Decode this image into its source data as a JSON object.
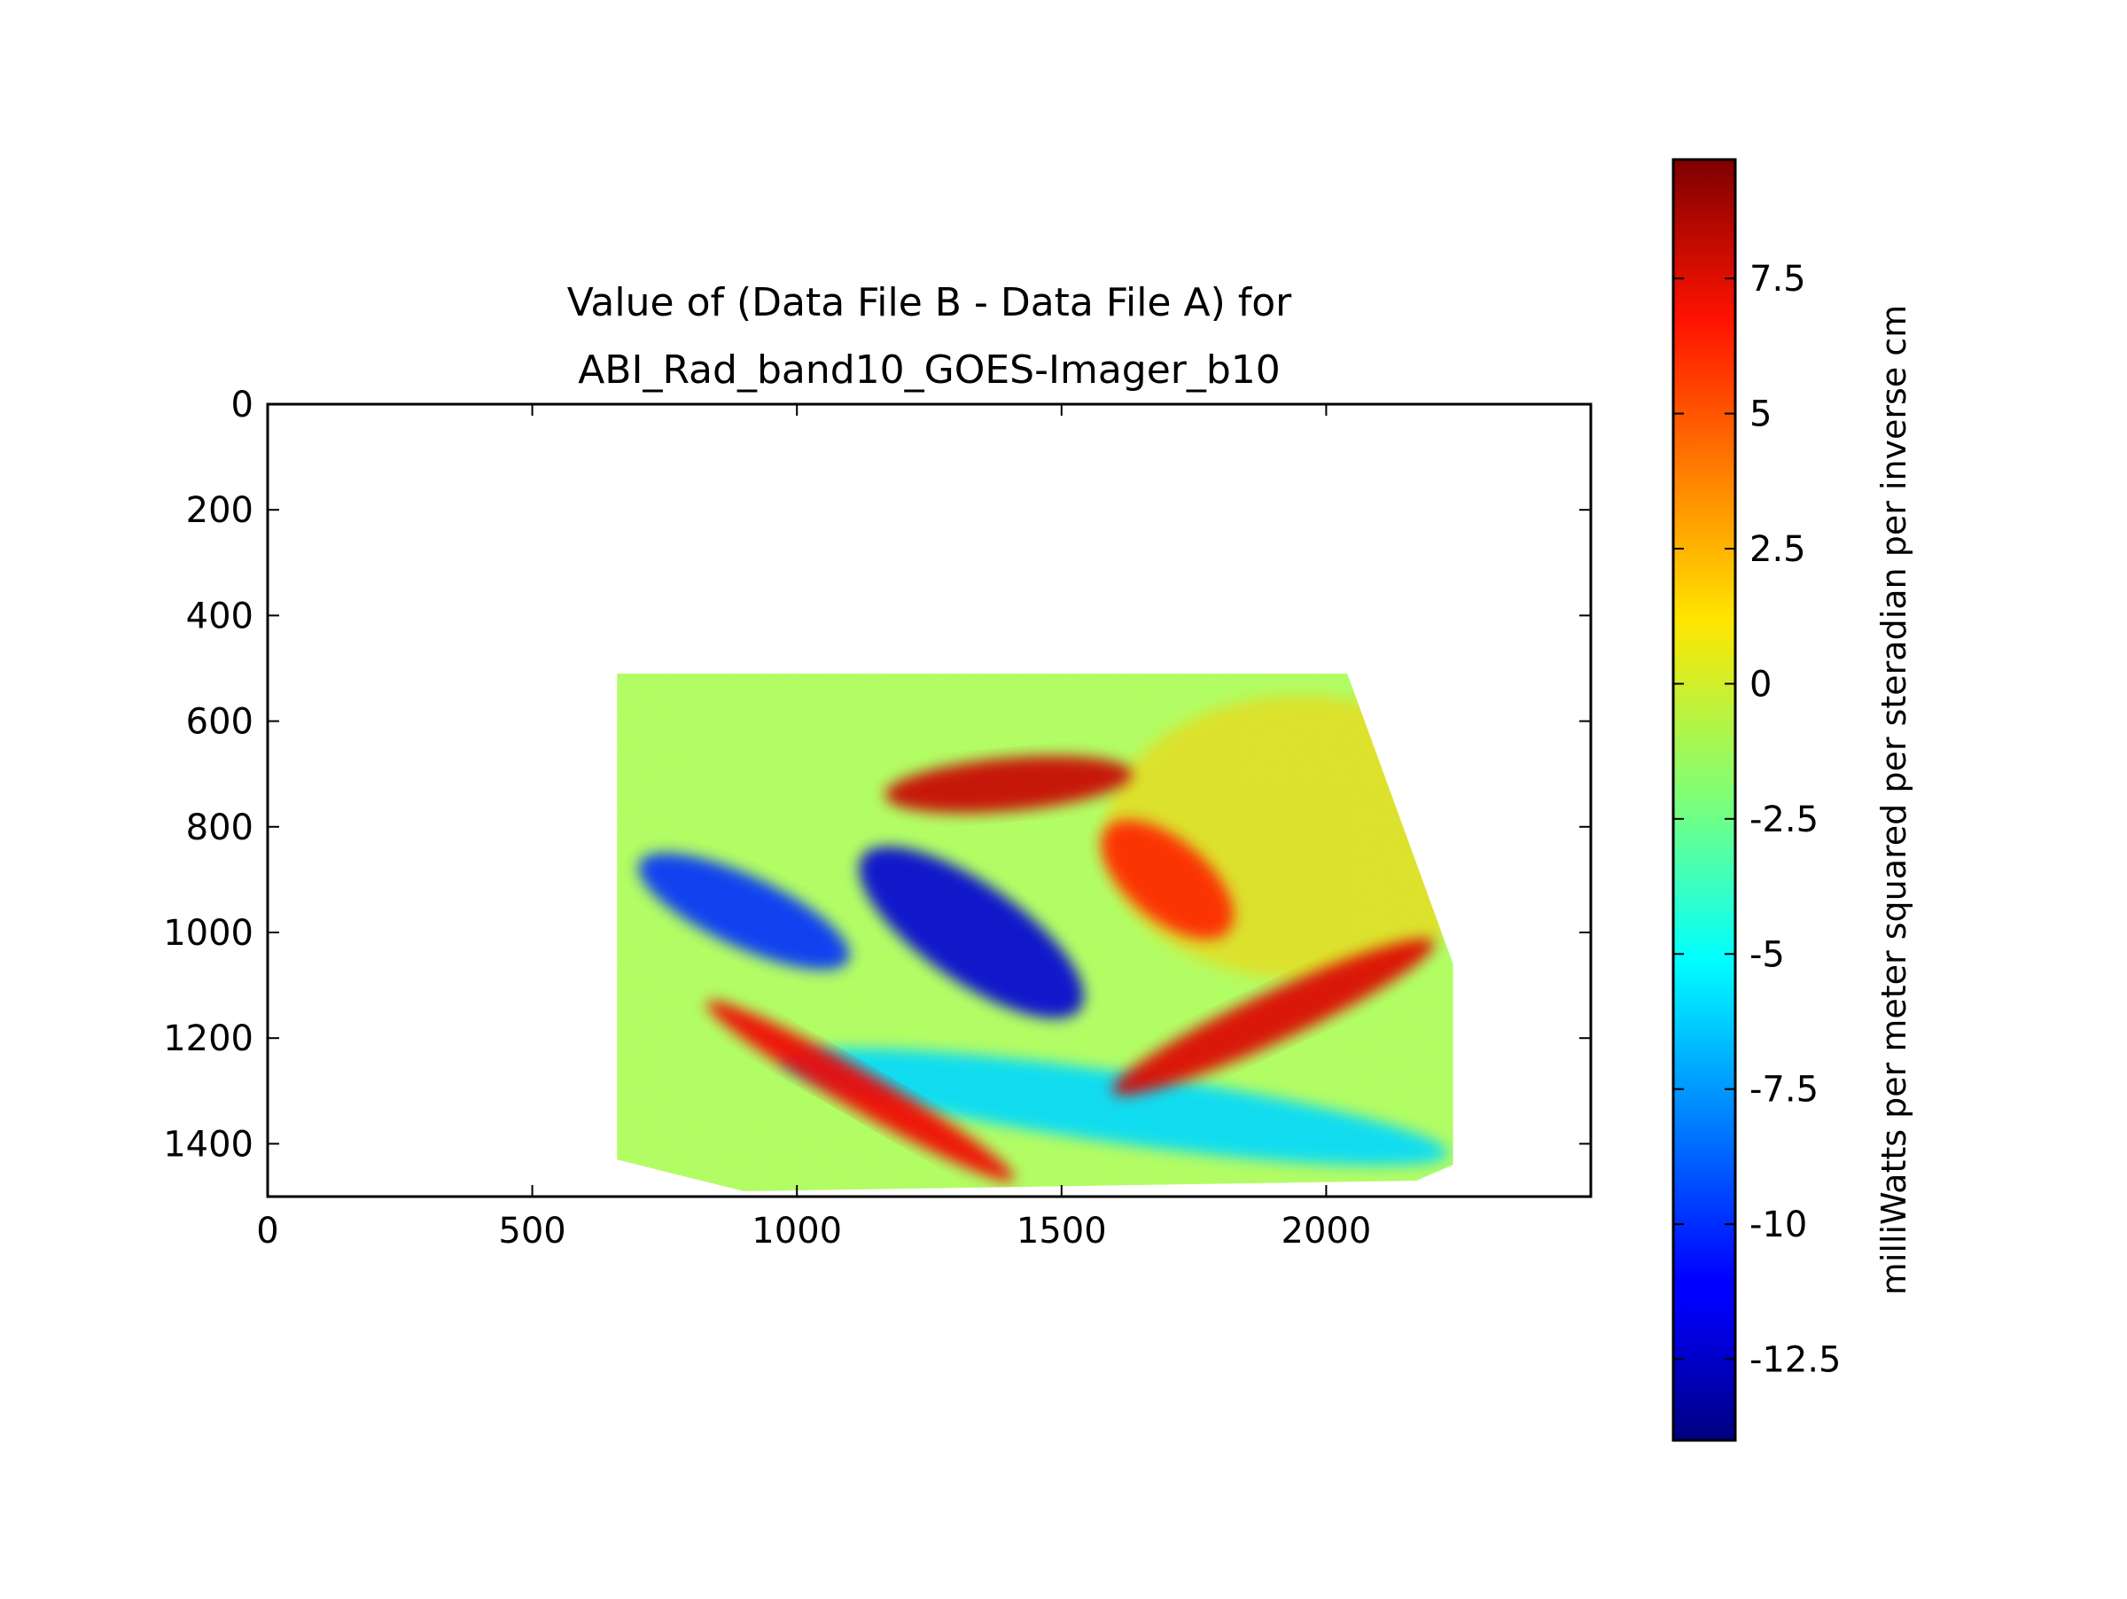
{
  "chart_data": {
    "type": "heatmap",
    "title_line1": "Value of (Data File B - Data File A) for",
    "title_line2": "ABI_Rad_band10_GOES-Imager_b10",
    "xlabel": "",
    "ylabel": "",
    "xlim": [
      0,
      2500
    ],
    "ylim": [
      1500,
      0
    ],
    "xticks": [
      "0",
      "500",
      "1000",
      "1500",
      "2000"
    ],
    "xtick_values": [
      0,
      500,
      1000,
      1500,
      2000
    ],
    "yticks": [
      "0",
      "200",
      "400",
      "600",
      "800",
      "1000",
      "1200",
      "1400"
    ],
    "ytick_values": [
      0,
      200,
      400,
      600,
      800,
      1000,
      1200,
      1400
    ],
    "colorbar": {
      "label": "milliWatts per meter squared per steradian per inverse cm",
      "range": [
        -14,
        9.7
      ],
      "ticks": [
        "7.5",
        "5",
        "2.5",
        "0",
        "-2.5",
        "-5",
        "-7.5",
        "-10",
        "-12.5"
      ],
      "tick_values": [
        7.5,
        5,
        2.5,
        0,
        -2.5,
        -5,
        -7.5,
        -10,
        -12.5
      ],
      "colormap": "jet"
    },
    "data_region_outline": [
      [
        660,
        510
      ],
      [
        2040,
        510
      ],
      [
        2240,
        1060
      ],
      [
        2240,
        1440
      ],
      [
        2170,
        1470
      ],
      [
        900,
        1490
      ],
      [
        660,
        1430
      ]
    ],
    "features": [
      {
        "name": "background-field",
        "value": -1
      },
      {
        "name": "cold-swirl-core",
        "x": 1380,
        "y": 1000,
        "value": -12
      },
      {
        "name": "blue-arc-south",
        "x": 1600,
        "y": 1330,
        "value": -6
      },
      {
        "name": "blue-patches-west",
        "x": 900,
        "y": 960,
        "value": -10
      },
      {
        "name": "red-band-southwest",
        "x": 1120,
        "y": 1300,
        "value": 7
      },
      {
        "name": "red-band-east",
        "x": 1900,
        "y": 1160,
        "value": 7.5
      },
      {
        "name": "red-patches-north",
        "x": 1400,
        "y": 720,
        "value": 8
      },
      {
        "name": "red-patches-northeast",
        "x": 1700,
        "y": 900,
        "value": 6
      },
      {
        "name": "yellow-region-east",
        "x": 1950,
        "y": 820,
        "value": 2
      }
    ]
  }
}
